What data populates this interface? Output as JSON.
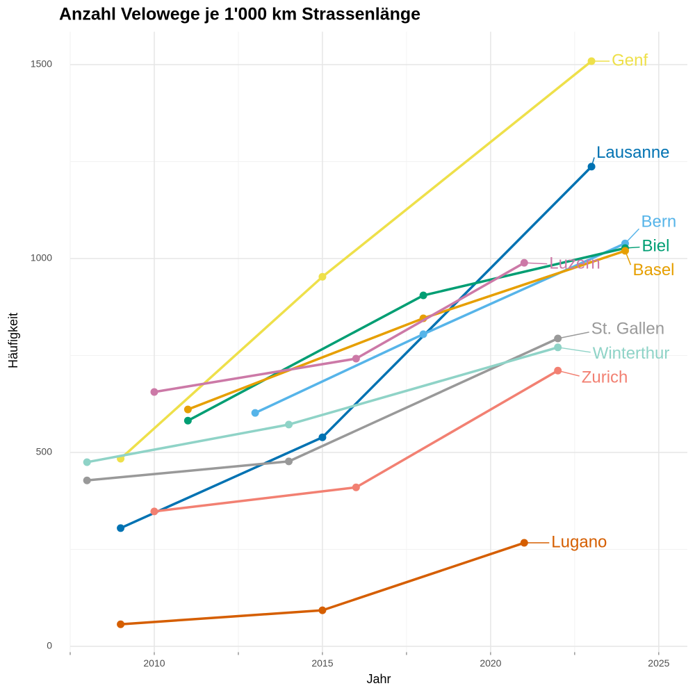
{
  "chart_data": {
    "type": "line",
    "title": "Anzahl Velowege je 1'000 km Strassenlänge",
    "x_label": "Jahr",
    "y_label": "Häufigkeit",
    "xlim": [
      2007.5,
      2025.85
    ],
    "ylim": [
      -15,
      1585
    ],
    "xticks": [
      2010,
      2015,
      2020,
      2025
    ],
    "yticks": [
      0,
      500,
      1000,
      1500
    ],
    "xminorticks": [
      2007.5,
      2012.5,
      2017.5,
      2022.5
    ],
    "yminorticks": [
      250,
      750,
      1250
    ],
    "grid": true,
    "series": [
      {
        "name": "Genf",
        "color": "#EEE04A",
        "x": [
          2009,
          2015,
          2023
        ],
        "values": [
          484,
          953,
          1509
        ]
      },
      {
        "name": "Lausanne",
        "color": "#0072B2",
        "x": [
          2009,
          2015,
          2023
        ],
        "values": [
          305,
          539,
          1237
        ]
      },
      {
        "name": "Bern",
        "color": "#56B4E9",
        "x": [
          2013,
          2018,
          2024
        ],
        "values": [
          602,
          805,
          1039
        ]
      },
      {
        "name": "Biel",
        "color": "#009E73",
        "x": [
          2011,
          2018,
          2024
        ],
        "values": [
          582,
          905,
          1027
        ]
      },
      {
        "name": "Basel",
        "color": "#E69F00",
        "x": [
          2011,
          2018,
          2024
        ],
        "values": [
          611,
          846,
          1020
        ]
      },
      {
        "name": "Luzern",
        "color": "#CC79A7",
        "x": [
          2010,
          2016,
          2021
        ],
        "values": [
          656,
          742,
          989
        ]
      },
      {
        "name": "St. Gallen",
        "color": "#999999",
        "x": [
          2008,
          2014,
          2022
        ],
        "values": [
          428,
          477,
          794
        ]
      },
      {
        "name": "Winterthur",
        "color": "#8FD3C7",
        "x": [
          2008,
          2014,
          2022
        ],
        "values": [
          475,
          572,
          771
        ]
      },
      {
        "name": "Zurich",
        "color": "#F28072",
        "x": [
          2010,
          2016,
          2022
        ],
        "values": [
          348,
          410,
          711
        ]
      },
      {
        "name": "Lugano",
        "color": "#D55E00",
        "x": [
          2009,
          2015,
          2021
        ],
        "values": [
          57,
          93,
          267
        ]
      }
    ]
  }
}
